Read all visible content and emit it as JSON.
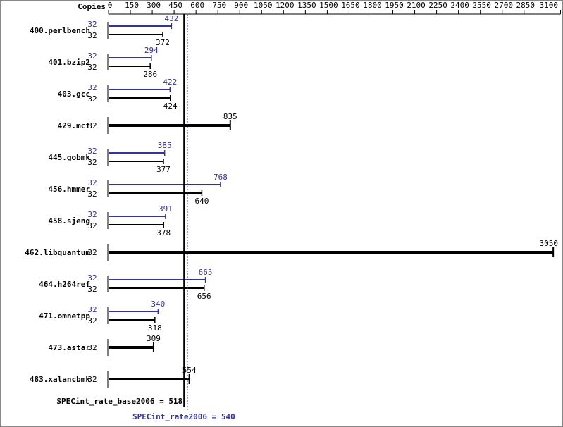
{
  "chart_data": {
    "type": "bar",
    "orientation": "horizontal",
    "copies_label": "Copies",
    "categories": [
      "400.perlbench",
      "401.bzip2",
      "403.gcc",
      "429.mcf",
      "445.gobmk",
      "456.hmmer",
      "458.sjeng",
      "462.libquantum",
      "464.h264ref",
      "471.omnetpp",
      "473.astar",
      "483.xalancbmk"
    ],
    "xlim": [
      0,
      3100
    ],
    "xticks": [
      0,
      150,
      300,
      450,
      600,
      750,
      900,
      1050,
      1200,
      1350,
      1500,
      1650,
      1800,
      1950,
      2100,
      2250,
      2400,
      2550,
      2700,
      2850,
      3100
    ],
    "series": [
      {
        "color": "#333399",
        "copies": [
          32,
          32,
          32,
          null,
          32,
          32,
          32,
          null,
          32,
          32,
          null,
          null
        ],
        "values": [
          432,
          294,
          422,
          null,
          385,
          768,
          391,
          null,
          665,
          340,
          null,
          null
        ]
      },
      {
        "color": "#000000",
        "copies": [
          32,
          32,
          32,
          32,
          32,
          32,
          32,
          32,
          32,
          32,
          32,
          32
        ],
        "values": [
          372,
          286,
          424,
          835,
          377,
          640,
          378,
          3050,
          656,
          318,
          309,
          554
        ]
      }
    ],
    "reference_lines": [
      {
        "label": "SPECint_rate_base2006 = 518",
        "value": 518,
        "color": "#000000",
        "style": "solid"
      },
      {
        "label": "SPECint_rate2006 = 540",
        "value": 540,
        "color": "#333399",
        "style": "dotted"
      }
    ]
  }
}
